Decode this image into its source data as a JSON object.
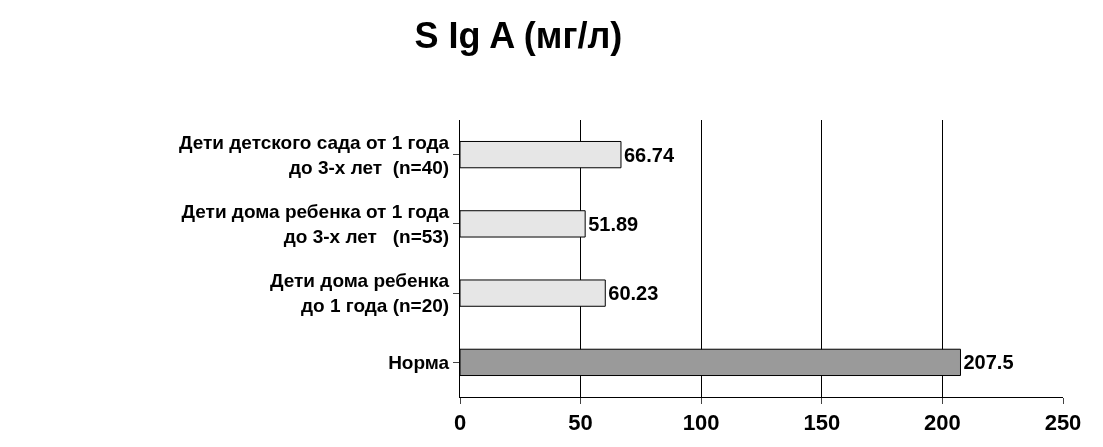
{
  "chart_data": {
    "type": "bar",
    "orientation": "horizontal",
    "title": "S Ig A (мг/л)",
    "categories": [
      "Дети детского сада от 1 года\nдо 3-х лет  (n=40)",
      "Дети дома ребенка от 1 года\nдо 3-х лет   (n=53)",
      "Дети дома ребенка\nдо 1 года (n=20)",
      "Норма"
    ],
    "values": [
      66.74,
      51.89,
      60.23,
      207.5
    ],
    "colors": [
      "#e6e6e6",
      "#e6e6e6",
      "#e6e6e6",
      "#9a9a9a"
    ],
    "data_labels": true,
    "xlim": [
      0,
      250
    ],
    "xticks": [
      0,
      50,
      100,
      150,
      200,
      250
    ],
    "grid": "x"
  }
}
